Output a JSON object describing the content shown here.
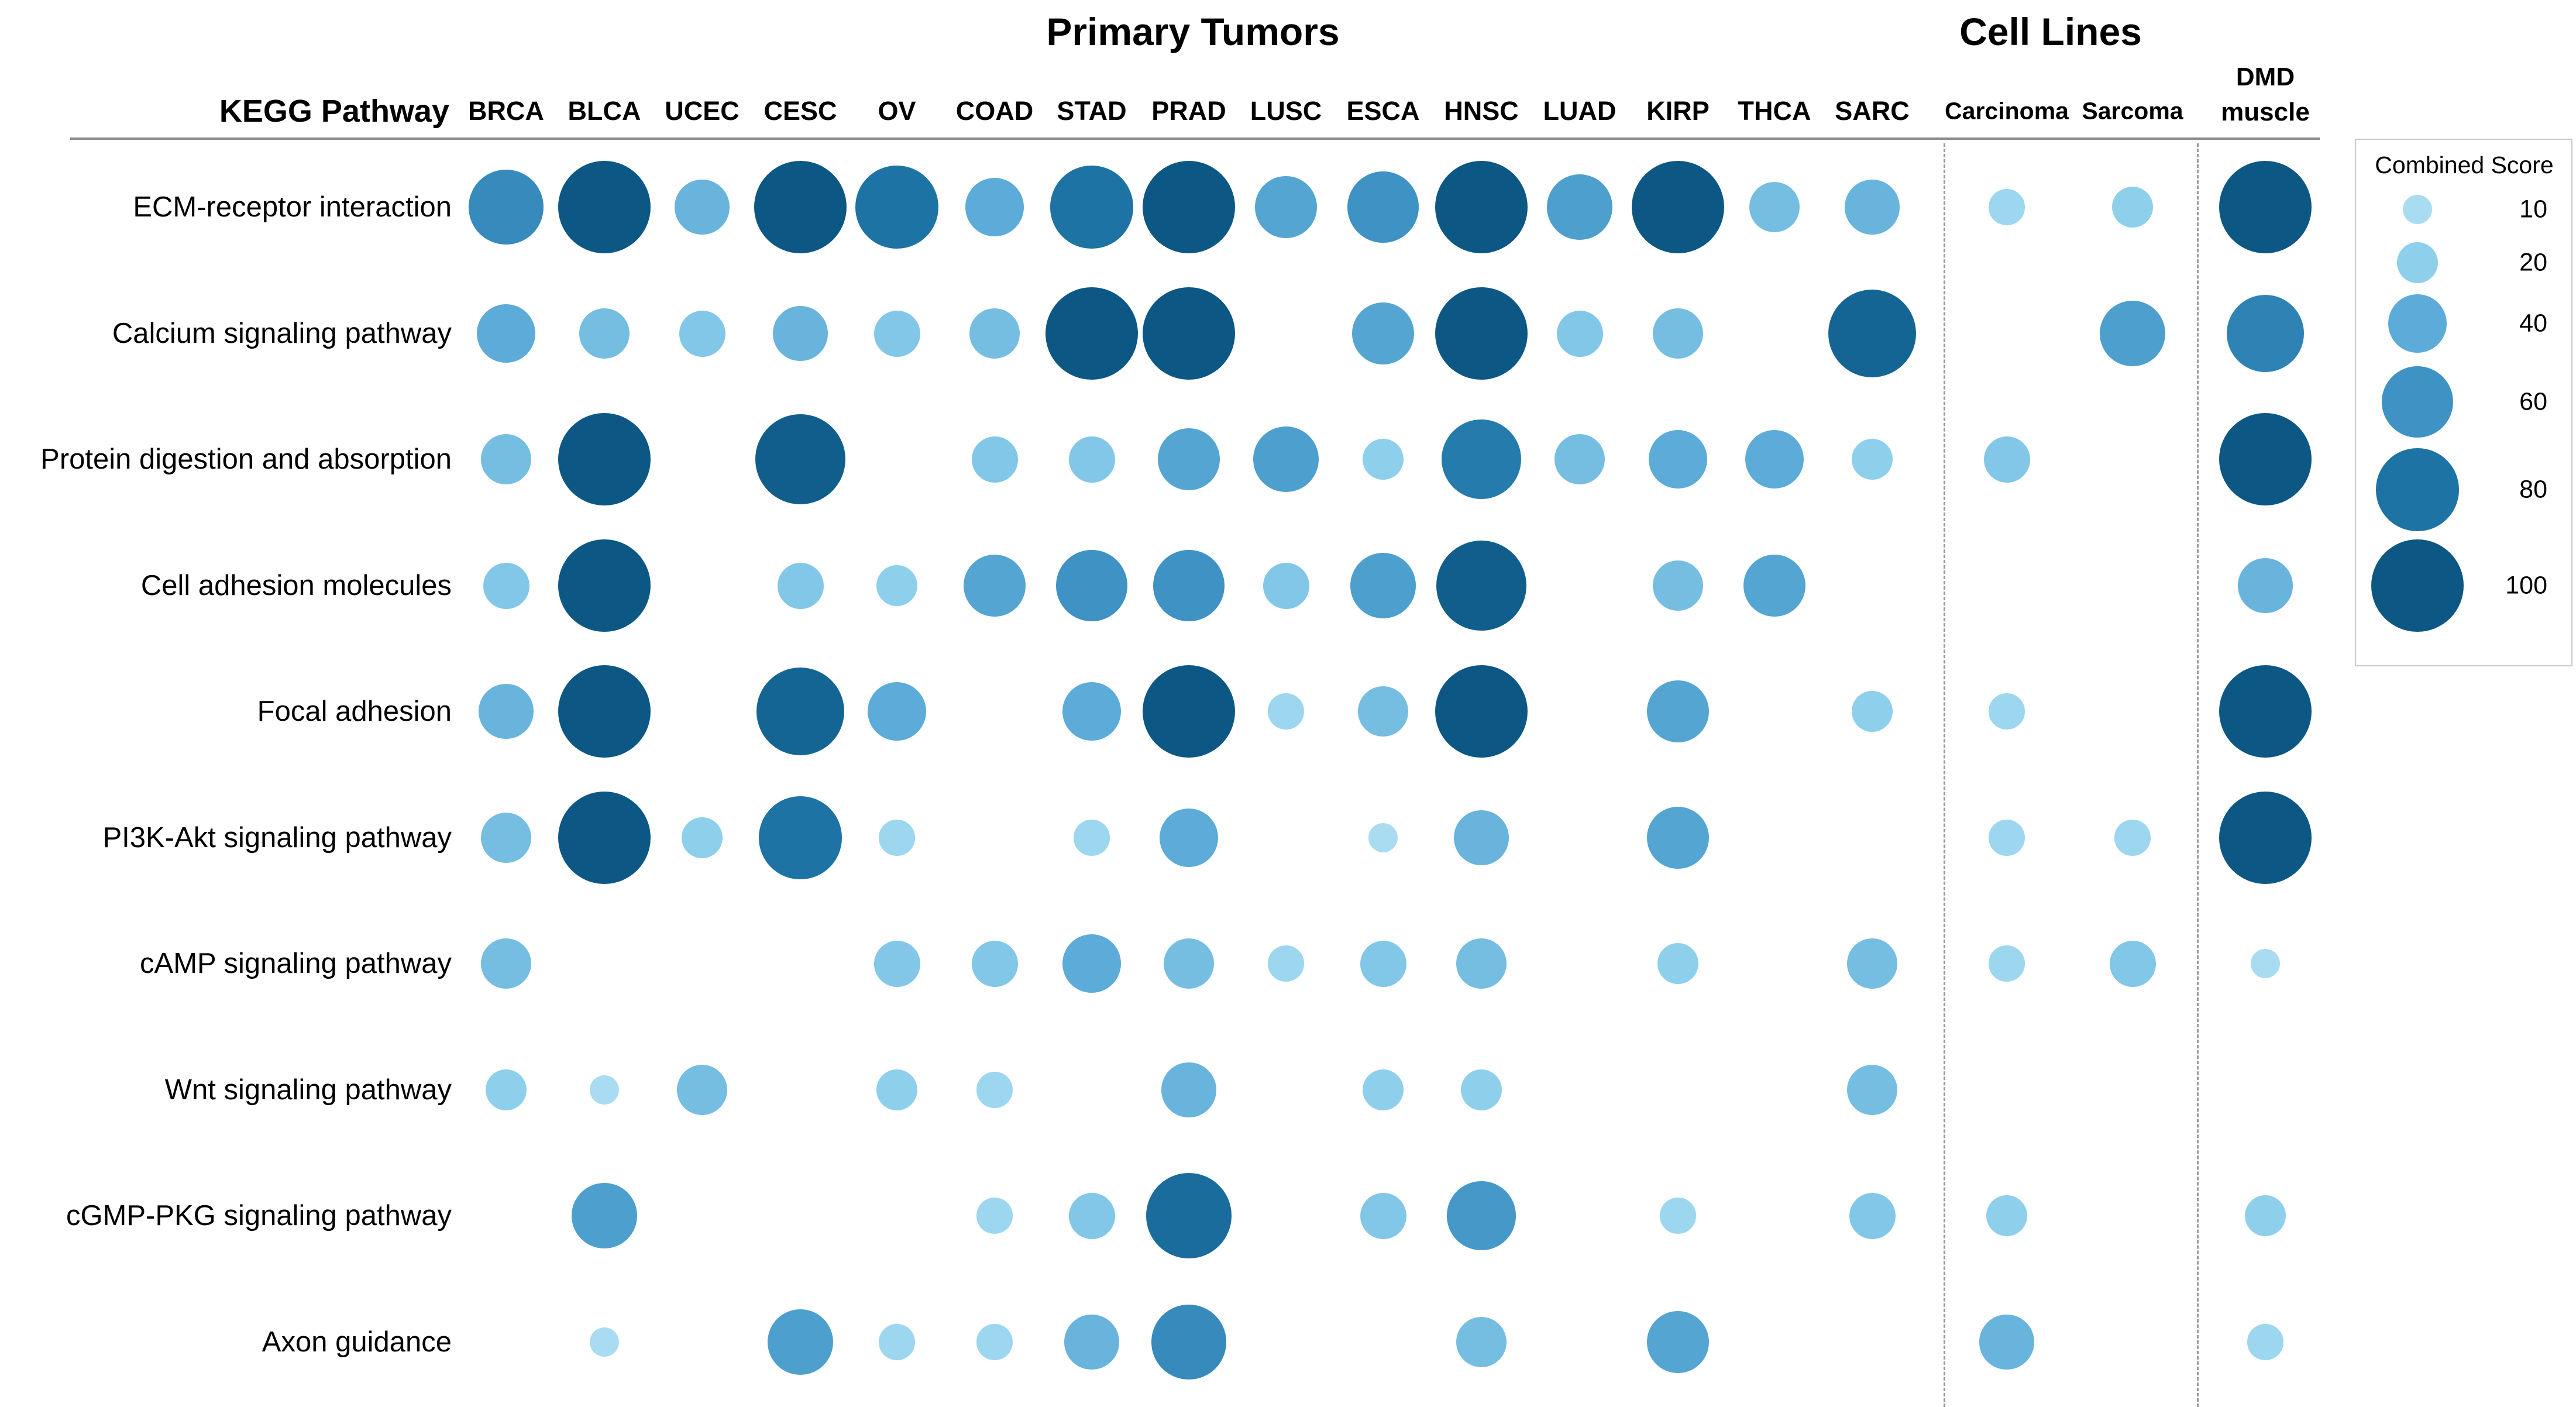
{
  "titles": {
    "primary_tumors": "Primary Tumors",
    "cell_lines": "Cell Lines",
    "kegg_pathway": "KEGG Pathway"
  },
  "legend": {
    "title": "Combined Score",
    "sizes": [
      10,
      20,
      40,
      60,
      80,
      100
    ]
  },
  "colors": {
    "background": "#ffffff",
    "scale_stops": [
      [
        10,
        "#a9dcf1"
      ],
      [
        20,
        "#8ed0ec"
      ],
      [
        40,
        "#5cabd8"
      ],
      [
        60,
        "#3e92c4"
      ],
      [
        80,
        "#1d73a4"
      ],
      [
        100,
        "#0d5784"
      ]
    ],
    "divider": "#8c8c8c",
    "dashed_line": "#999999",
    "legend_border": "#c9c9c9"
  },
  "chart_data": {
    "type": "scatter",
    "subtype": "bubble-matrix",
    "title": "",
    "xlabel": "",
    "ylabel": "",
    "size_metric": "Combined Score",
    "size_legend": [
      10,
      20,
      40,
      60,
      80,
      100
    ],
    "column_groups": [
      {
        "label": "Primary Tumors",
        "columns": [
          "BRCA",
          "BLCA",
          "UCEC",
          "CESC",
          "OV",
          "COAD",
          "STAD",
          "PRAD",
          "LUSC",
          "ESCA",
          "HNSC",
          "LUAD",
          "KIRP",
          "THCA",
          "SARC"
        ]
      },
      {
        "label": "Cell Lines",
        "columns": [
          "Carcinoma",
          "Sarcoma"
        ]
      },
      {
        "label": "",
        "columns": [
          "DMD muscle"
        ]
      }
    ],
    "columns": [
      "BRCA",
      "BLCA",
      "UCEC",
      "CESC",
      "OV",
      "COAD",
      "STAD",
      "PRAD",
      "LUSC",
      "ESCA",
      "HNSC",
      "LUAD",
      "KIRP",
      "THCA",
      "SARC",
      "Carcinoma",
      "Sarcoma",
      "DMD muscle"
    ],
    "rows": [
      "ECM-receptor interaction",
      "Calcium signaling pathway",
      "Protein digestion and absorption",
      "Cell adhesion molecules",
      "Focal adhesion",
      "PI3K-Akt signaling pathway",
      "cAMP signaling pathway",
      "Wnt signaling pathway",
      "cGMP-PKG signaling pathway",
      "Axon guidance"
    ],
    "values": [
      [
        65,
        100,
        35,
        100,
        80,
        40,
        80,
        100,
        45,
        60,
        100,
        50,
        100,
        30,
        35,
        15,
        20,
        100
      ],
      [
        40,
        30,
        25,
        35,
        25,
        30,
        100,
        100,
        null,
        45,
        100,
        25,
        30,
        null,
        90,
        null,
        50,
        70
      ],
      [
        30,
        100,
        null,
        95,
        null,
        25,
        25,
        45,
        50,
        20,
        75,
        30,
        40,
        40,
        20,
        25,
        null,
        100
      ],
      [
        25,
        100,
        null,
        25,
        20,
        45,
        60,
        60,
        25,
        50,
        95,
        null,
        30,
        45,
        null,
        null,
        null,
        35
      ],
      [
        35,
        100,
        null,
        90,
        40,
        null,
        40,
        100,
        15,
        30,
        100,
        null,
        45,
        null,
        20,
        15,
        null,
        100
      ],
      [
        30,
        100,
        20,
        80,
        15,
        null,
        15,
        40,
        null,
        10,
        35,
        null,
        45,
        null,
        null,
        15,
        15,
        100
      ],
      [
        30,
        null,
        null,
        null,
        25,
        25,
        40,
        30,
        15,
        25,
        30,
        null,
        20,
        null,
        30,
        15,
        25,
        10
      ],
      [
        20,
        10,
        30,
        null,
        20,
        15,
        null,
        35,
        null,
        20,
        20,
        null,
        null,
        null,
        30,
        null,
        null,
        null
      ],
      [
        null,
        50,
        null,
        null,
        null,
        15,
        25,
        85,
        null,
        25,
        55,
        null,
        15,
        null,
        25,
        20,
        null,
        20
      ],
      [
        null,
        10,
        null,
        50,
        15,
        15,
        35,
        65,
        null,
        null,
        30,
        null,
        45,
        null,
        null,
        35,
        null,
        15
      ]
    ]
  }
}
